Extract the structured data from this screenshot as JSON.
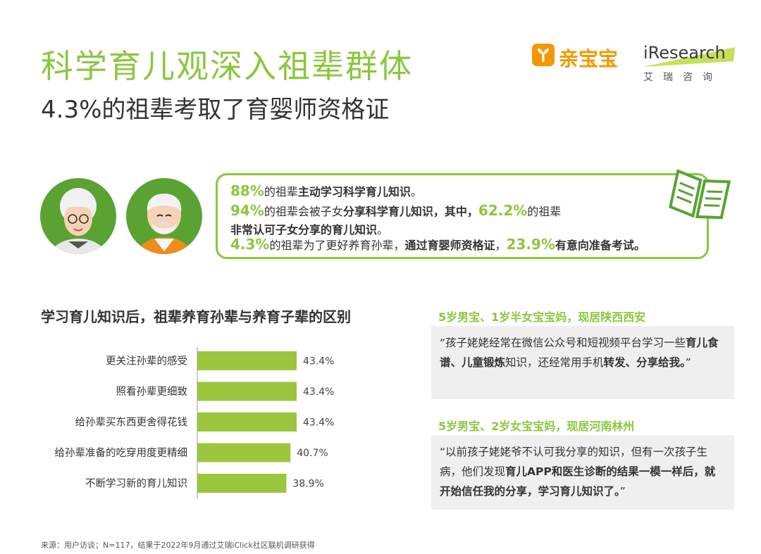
{
  "header": {
    "title": "科学育儿观深入祖辈群体",
    "subtitle": "4.3%的祖辈考取了育婴师资格证"
  },
  "logos": {
    "qinbaobao": "亲宝宝",
    "iresearch": "iResearch",
    "iresearch_cn": "艾瑞咨询"
  },
  "summary": {
    "line1": {
      "pct": "88%",
      "t1": "的祖辈",
      "b1": "主动学习科学育儿知识",
      "t2": "。"
    },
    "line2": {
      "pct": "94%",
      "t1": "的祖辈会被子女",
      "b1": "分享科学育儿知识，其中，",
      "pct2": "62.2%",
      "t2": "的祖辈"
    },
    "line3": {
      "b1": "非常认可子女分享的育儿知识",
      "t1": "。"
    },
    "line4": {
      "pct": "4.3%",
      "t1": "的祖辈为了更好养育孙辈，",
      "b1": "通过育婴师资格证",
      "t2": "，",
      "pct2": "23.9%",
      "b2": "有意向准备考试。"
    }
  },
  "chart_data": {
    "type": "bar",
    "orientation": "horizontal",
    "title": "学习育儿知识后，祖辈养育孙辈与养育子辈的区别",
    "categories": [
      "更关注孙辈的感受",
      "照看孙辈更细致",
      "给孙辈买东西更舍得花钱",
      "给孙辈准备的吃穿用度更精细",
      "不断学习新的育儿知识"
    ],
    "values": [
      43.4,
      43.4,
      43.4,
      40.7,
      38.9
    ],
    "value_labels": [
      "43.4%",
      "43.4%",
      "43.4%",
      "40.7%",
      "38.9%"
    ],
    "color": "#9bc53d"
  },
  "quotes": [
    {
      "head": "5岁男宝、1岁半女宝宝妈，现居陕西西安",
      "parts": [
        {
          "t": "“孩子姥姥经常在微信公众号和短视频平台学习一些"
        },
        {
          "b": "育儿食谱、儿童锻炼"
        },
        {
          "t": "知识，还经常用手机"
        },
        {
          "b": "转发、分享给我。"
        },
        {
          "t": "”"
        }
      ]
    },
    {
      "head": "5岁男宝、2岁女宝宝妈，现居河南林州",
      "parts": [
        {
          "t": "“以前孩子姥姥爷不认可我分享的知识，但有一次孩子生病，他们发现"
        },
        {
          "b": "育儿APP和医生诊断的结果一模一样后，就开始信任我的分享，学习育儿知识了。"
        },
        {
          "t": "”"
        }
      ]
    }
  ],
  "source": "来源：用户访谈；N=117，结果于2022年9月通过艾瑞iClick社区联机调研获得"
}
